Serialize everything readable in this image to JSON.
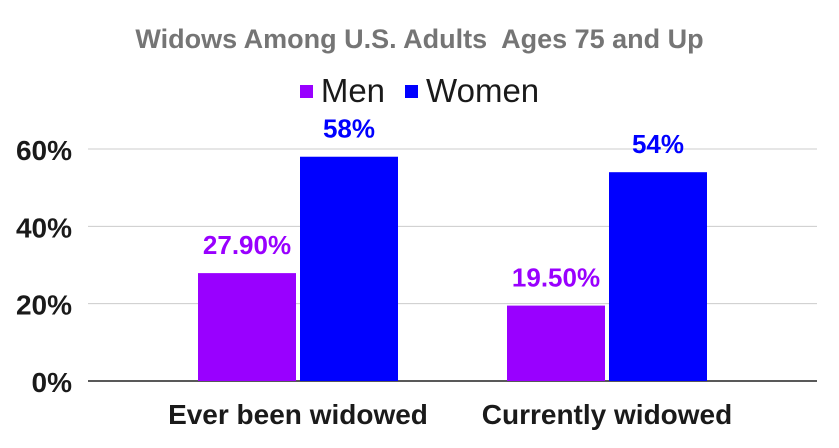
{
  "colors": {
    "men": "#9900ff",
    "women": "#0000ff",
    "grid": "#cccccc",
    "axis": "#222222",
    "title": "#757575",
    "text": "#1a1a1a"
  },
  "chart_data": {
    "type": "bar",
    "title": "Widows Among U.S. Adults  Ages 75 and Up",
    "xlabel": "",
    "ylabel": "",
    "categories": [
      "Ever been widowed",
      "Currently widowed"
    ],
    "series": [
      {
        "name": "Men",
        "values": [
          27.9,
          19.5
        ],
        "labels": [
          "27.90%",
          "19.50%"
        ],
        "color": "#9900ff"
      },
      {
        "name": "Women",
        "values": [
          58,
          54
        ],
        "labels": [
          "58%",
          "54%"
        ],
        "color": "#0000ff"
      }
    ],
    "ylim": [
      0,
      60
    ],
    "yticks": [
      0,
      20,
      40,
      60
    ],
    "ytick_labels": [
      "0%",
      "20%",
      "40%",
      "60%"
    ],
    "grid": true,
    "legend_position": "top-center"
  }
}
